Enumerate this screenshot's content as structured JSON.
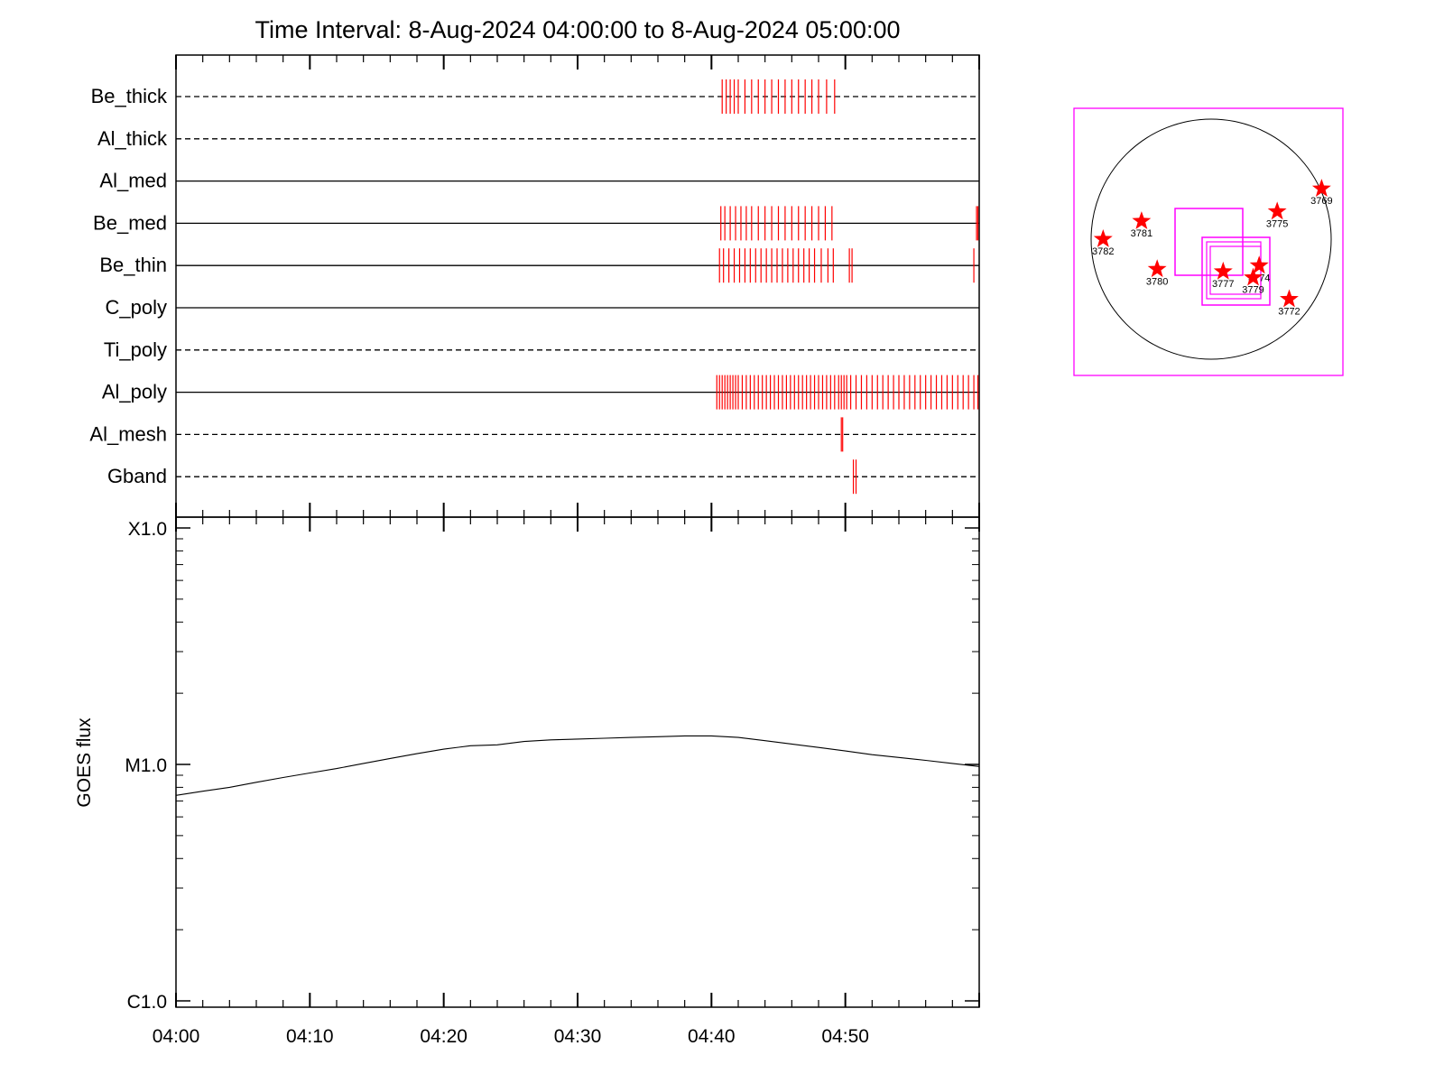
{
  "title": "Time Interval:  8-Aug-2024 04:00:00 to  8-Aug-2024 05:00:00",
  "colors": {
    "marker": "#ff0000",
    "box": "#ff00ff",
    "axis": "#000000",
    "star": "#ff0000"
  },
  "channels": [
    {
      "name": "Be_thick",
      "style": "dashed",
      "events": [
        40.8,
        41.1,
        41.4,
        41.7,
        42.0,
        42.5,
        43.0,
        43.5,
        44.0,
        44.5,
        45.0,
        45.5,
        46.0,
        46.5,
        47.0,
        47.5,
        48.0,
        48.6,
        49.2
      ]
    },
    {
      "name": "Al_thick",
      "style": "dashed",
      "events": []
    },
    {
      "name": "Al_med",
      "style": "solid",
      "events": []
    },
    {
      "name": "Be_med",
      "style": "solid",
      "events": [
        40.7,
        41.0,
        41.4,
        41.8,
        42.2,
        42.6,
        43.0,
        43.5,
        44.0,
        44.5,
        45.0,
        45.5,
        46.0,
        46.5,
        47.0,
        47.5,
        48.0,
        48.5,
        49.0,
        59.8,
        59.9
      ]
    },
    {
      "name": "Be_thin",
      "style": "solid",
      "events": [
        40.6,
        40.9,
        41.3,
        41.7,
        42.1,
        42.5,
        42.9,
        43.3,
        43.7,
        44.1,
        44.5,
        44.9,
        45.3,
        45.7,
        46.1,
        46.5,
        46.9,
        47.3,
        47.7,
        48.2,
        48.7,
        49.1,
        50.3,
        50.5,
        59.6
      ]
    },
    {
      "name": "C_poly",
      "style": "solid",
      "events": []
    },
    {
      "name": "Ti_poly",
      "style": "dashed",
      "events": []
    },
    {
      "name": "Al_poly",
      "style": "solid",
      "events": [
        40.4,
        40.6,
        40.8,
        41.0,
        41.2,
        41.4,
        41.6,
        41.8,
        42.0,
        42.3,
        42.6,
        42.9,
        43.2,
        43.5,
        43.8,
        44.1,
        44.4,
        44.7,
        45.0,
        45.3,
        45.6,
        45.9,
        46.2,
        46.5,
        46.8,
        47.1,
        47.4,
        47.7,
        48.0,
        48.3,
        48.6,
        48.9,
        49.2,
        49.5,
        49.7,
        49.9,
        50.1,
        50.4,
        50.8,
        51.2,
        51.6,
        52.0,
        52.4,
        52.8,
        53.2,
        53.6,
        54.0,
        54.4,
        54.8,
        55.2,
        55.6,
        56.0,
        56.4,
        56.8,
        57.2,
        57.6,
        58.0,
        58.4,
        58.8,
        59.2,
        59.6,
        59.9
      ]
    },
    {
      "name": "Al_mesh",
      "style": "dashed",
      "events": [
        49.7,
        49.8
      ]
    },
    {
      "name": "Gband",
      "style": "dashed",
      "events": [
        50.6,
        50.8
      ]
    }
  ],
  "chart_data": {
    "type": "line",
    "title": "Time Interval:  8-Aug-2024 04:00:00 to  8-Aug-2024 05:00:00",
    "xlabel": "",
    "ylabel": "GOES flux",
    "x_ticks": [
      "04:00",
      "04:10",
      "04:20",
      "04:30",
      "04:40",
      "04:50"
    ],
    "xlim_minutes": [
      0,
      60
    ],
    "y_ticks": [
      {
        "label": "X1.0",
        "value": 0.0001
      },
      {
        "label": "M1.0",
        "value": 1e-05
      },
      {
        "label": "C1.0",
        "value": 1e-06
      }
    ],
    "y_scale": "log",
    "ylim": [
      1e-06,
      0.0001
    ],
    "series": [
      {
        "x_minutes": [
          0,
          2,
          4,
          6,
          8,
          10,
          12,
          14,
          16,
          18,
          20,
          22,
          24,
          26,
          28,
          30,
          32,
          34,
          36,
          38,
          40,
          42,
          44,
          46,
          48,
          50,
          52,
          54,
          56,
          58,
          60
        ],
        "y": [
          7.4e-06,
          7.7e-06,
          8e-06,
          8.4e-06,
          8.8e-06,
          9.2e-06,
          9.6e-06,
          1.01e-05,
          1.06e-05,
          1.11e-05,
          1.16e-05,
          1.2e-05,
          1.21e-05,
          1.25e-05,
          1.27e-05,
          1.28e-05,
          1.29e-05,
          1.3e-05,
          1.31e-05,
          1.32e-05,
          1.32e-05,
          1.3e-05,
          1.26e-05,
          1.22e-05,
          1.18e-05,
          1.14e-05,
          1.1e-05,
          1.07e-05,
          1.04e-05,
          1.01e-05,
          9.8e-06
        ]
      }
    ]
  },
  "sun_map": {
    "regions": [
      {
        "label": "3769",
        "hpx": 0.92,
        "hpy": 0.42
      },
      {
        "label": "3775",
        "hpx": 0.55,
        "hpy": 0.23
      },
      {
        "label": "3781",
        "hpx": -0.58,
        "hpy": 0.15
      },
      {
        "label": "3782",
        "hpx": -0.9,
        "hpy": 0.0
      },
      {
        "label": "3780",
        "hpx": -0.45,
        "hpy": -0.25
      },
      {
        "label": "3777",
        "hpx": 0.1,
        "hpy": -0.27
      },
      {
        "label": "3774",
        "hpx": 0.4,
        "hpy": -0.22
      },
      {
        "label": "3779",
        "hpx": 0.35,
        "hpy": -0.32
      },
      {
        "label": "3772",
        "hpx": 0.65,
        "hpy": -0.5
      }
    ]
  }
}
